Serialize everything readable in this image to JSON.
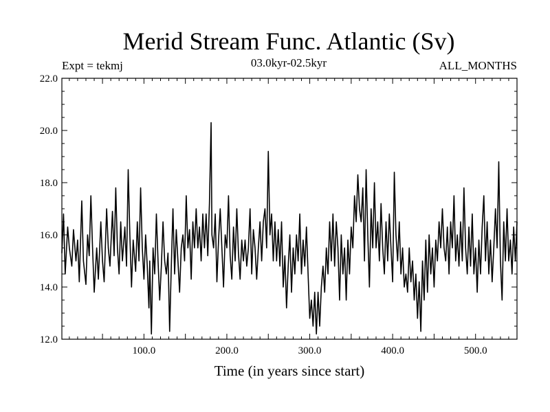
{
  "chart_data": {
    "type": "line",
    "title": "Merid Stream Func. Atlantic (Sv)",
    "subtitle": "03.0kyr-02.5kyr",
    "left_label": "Expt = tekmj",
    "right_label": "ALL_MONTHS",
    "xlabel": "Time (in years since start)",
    "ylabel": "",
    "xlim": [
      1,
      550
    ],
    "ylim": [
      12.0,
      22.0
    ],
    "x_ticks": [
      100.0,
      200.0,
      300.0,
      400.0,
      500.0
    ],
    "x_tick_labels": [
      "100.0",
      "200.0",
      "300.0",
      "400.0",
      "500.0"
    ],
    "y_ticks": [
      12.0,
      14.0,
      16.0,
      18.0,
      20.0,
      22.0
    ],
    "y_tick_labels": [
      "12.0",
      "14.0",
      "16.0",
      "18.0",
      "20.0",
      "22.0"
    ],
    "grid": false,
    "line_color": "#000000",
    "series": [
      {
        "name": "Merid Stream Func. Atlantic",
        "anchors": [
          [
            1,
            15.3
          ],
          [
            3,
            16.8
          ],
          [
            5,
            14.5
          ],
          [
            8,
            16.3
          ],
          [
            10,
            15.5
          ],
          [
            13,
            14.8
          ],
          [
            15,
            16.2
          ],
          [
            18,
            15.0
          ],
          [
            20,
            15.8
          ],
          [
            22,
            14.2
          ],
          [
            25,
            17.3
          ],
          [
            27,
            15.0
          ],
          [
            30,
            14.1
          ],
          [
            32,
            16.0
          ],
          [
            34,
            15.2
          ],
          [
            36,
            17.5
          ],
          [
            38,
            15.5
          ],
          [
            40,
            13.8
          ],
          [
            43,
            15.5
          ],
          [
            45,
            14.3
          ],
          [
            48,
            16.5
          ],
          [
            50,
            15.0
          ],
          [
            52,
            14.2
          ],
          [
            55,
            17.0
          ],
          [
            57,
            15.5
          ],
          [
            59,
            14.8
          ],
          [
            62,
            16.9
          ],
          [
            64,
            15.2
          ],
          [
            66,
            17.8
          ],
          [
            68,
            15.5
          ],
          [
            70,
            14.5
          ],
          [
            72,
            16.5
          ],
          [
            74,
            15.0
          ],
          [
            77,
            16.3
          ],
          [
            79,
            14.8
          ],
          [
            81,
            18.5
          ],
          [
            83,
            16.0
          ],
          [
            85,
            14.0
          ],
          [
            87,
            15.8
          ],
          [
            90,
            14.6
          ],
          [
            92,
            16.5
          ],
          [
            94,
            15.0
          ],
          [
            96,
            17.8
          ],
          [
            98,
            15.5
          ],
          [
            100,
            14.3
          ],
          [
            102,
            16.0
          ],
          [
            104,
            14.8
          ],
          [
            106,
            13.2
          ],
          [
            107,
            15.0
          ],
          [
            109,
            12.2
          ],
          [
            111,
            15.5
          ],
          [
            113,
            14.5
          ],
          [
            115,
            16.8
          ],
          [
            117,
            15.0
          ],
          [
            119,
            13.5
          ],
          [
            121,
            14.8
          ],
          [
            123,
            16.5
          ],
          [
            125,
            15.0
          ],
          [
            127,
            14.5
          ],
          [
            129,
            15.3
          ],
          [
            131,
            12.3
          ],
          [
            133,
            14.8
          ],
          [
            135,
            17.0
          ],
          [
            137,
            14.5
          ],
          [
            139,
            16.2
          ],
          [
            141,
            15.0
          ],
          [
            143,
            13.8
          ],
          [
            145,
            15.5
          ],
          [
            147,
            16.0
          ],
          [
            149,
            15.0
          ],
          [
            151,
            17.5
          ],
          [
            153,
            15.5
          ],
          [
            155,
            16.2
          ],
          [
            157,
            14.3
          ],
          [
            159,
            16.5
          ],
          [
            161,
            15.5
          ],
          [
            163,
            17.0
          ],
          [
            165,
            15.5
          ],
          [
            167,
            16.3
          ],
          [
            169,
            15.0
          ],
          [
            171,
            16.8
          ],
          [
            173,
            15.5
          ],
          [
            175,
            16.8
          ],
          [
            177,
            15.2
          ],
          [
            179,
            17.2
          ],
          [
            181,
            20.3
          ],
          [
            182,
            16.0
          ],
          [
            184,
            15.5
          ],
          [
            186,
            16.8
          ],
          [
            188,
            14.2
          ],
          [
            190,
            15.8
          ],
          [
            192,
            17.0
          ],
          [
            194,
            15.5
          ],
          [
            196,
            14.0
          ],
          [
            198,
            16.0
          ],
          [
            200,
            15.5
          ],
          [
            202,
            17.5
          ],
          [
            204,
            15.2
          ],
          [
            206,
            14.3
          ],
          [
            208,
            16.3
          ],
          [
            210,
            15.0
          ],
          [
            212,
            17.0
          ],
          [
            214,
            15.3
          ],
          [
            216,
            14.3
          ],
          [
            218,
            15.8
          ],
          [
            220,
            15.0
          ],
          [
            222,
            15.8
          ],
          [
            224,
            14.8
          ],
          [
            226,
            15.5
          ],
          [
            228,
            17.0
          ],
          [
            230,
            14.5
          ],
          [
            232,
            16.2
          ],
          [
            234,
            15.5
          ],
          [
            236,
            14.3
          ],
          [
            238,
            15.5
          ],
          [
            240,
            16.5
          ],
          [
            242,
            15.0
          ],
          [
            244,
            16.5
          ],
          [
            246,
            17.0
          ],
          [
            248,
            15.5
          ],
          [
            250,
            19.2
          ],
          [
            252,
            16.0
          ],
          [
            254,
            16.8
          ],
          [
            256,
            15.0
          ],
          [
            258,
            16.5
          ],
          [
            260,
            15.0
          ],
          [
            262,
            16.2
          ],
          [
            264,
            14.8
          ],
          [
            266,
            16.5
          ],
          [
            268,
            14.0
          ],
          [
            270,
            15.2
          ],
          [
            272,
            13.2
          ],
          [
            274,
            14.8
          ],
          [
            276,
            16.0
          ],
          [
            278,
            13.8
          ],
          [
            280,
            15.5
          ],
          [
            282,
            14.5
          ],
          [
            284,
            16.0
          ],
          [
            286,
            15.0
          ],
          [
            288,
            16.8
          ],
          [
            290,
            14.5
          ],
          [
            292,
            15.8
          ],
          [
            294,
            14.8
          ],
          [
            296,
            16.3
          ],
          [
            298,
            14.5
          ],
          [
            300,
            12.8
          ],
          [
            302,
            13.5
          ],
          [
            304,
            12.5
          ],
          [
            306,
            13.8
          ],
          [
            308,
            12.2
          ],
          [
            310,
            13.8
          ],
          [
            312,
            12.5
          ],
          [
            314,
            14.0
          ],
          [
            316,
            14.8
          ],
          [
            318,
            13.8
          ],
          [
            320,
            15.5
          ],
          [
            322,
            14.5
          ],
          [
            324,
            16.5
          ],
          [
            326,
            15.0
          ],
          [
            328,
            16.8
          ],
          [
            330,
            14.8
          ],
          [
            332,
            16.5
          ],
          [
            334,
            15.5
          ],
          [
            336,
            13.5
          ],
          [
            338,
            16.0
          ],
          [
            340,
            14.5
          ],
          [
            342,
            15.5
          ],
          [
            344,
            13.5
          ],
          [
            346,
            15.8
          ],
          [
            348,
            14.5
          ],
          [
            350,
            16.3
          ],
          [
            352,
            15.5
          ],
          [
            354,
            17.5
          ],
          [
            356,
            16.5
          ],
          [
            358,
            18.3
          ],
          [
            360,
            17.0
          ],
          [
            362,
            16.5
          ],
          [
            364,
            17.8
          ],
          [
            366,
            15.0
          ],
          [
            368,
            18.5
          ],
          [
            370,
            16.0
          ],
          [
            372,
            14.0
          ],
          [
            374,
            17.0
          ],
          [
            376,
            15.5
          ],
          [
            378,
            18.0
          ],
          [
            380,
            15.5
          ],
          [
            382,
            16.5
          ],
          [
            384,
            15.0
          ],
          [
            386,
            17.2
          ],
          [
            388,
            15.5
          ],
          [
            390,
            14.5
          ],
          [
            392,
            16.5
          ],
          [
            394,
            15.0
          ],
          [
            396,
            16.8
          ],
          [
            398,
            15.5
          ],
          [
            400,
            14.2
          ],
          [
            402,
            18.4
          ],
          [
            404,
            16.0
          ],
          [
            406,
            15.0
          ],
          [
            408,
            16.5
          ],
          [
            410,
            14.5
          ],
          [
            412,
            15.5
          ],
          [
            414,
            14.0
          ],
          [
            416,
            14.5
          ],
          [
            418,
            13.8
          ],
          [
            420,
            15.5
          ],
          [
            422,
            14.2
          ],
          [
            424,
            15.0
          ],
          [
            426,
            13.5
          ],
          [
            428,
            14.5
          ],
          [
            430,
            12.8
          ],
          [
            432,
            14.2
          ],
          [
            434,
            12.3
          ],
          [
            436,
            15.0
          ],
          [
            438,
            13.5
          ],
          [
            440,
            15.8
          ],
          [
            442,
            13.8
          ],
          [
            444,
            16.0
          ],
          [
            446,
            14.5
          ],
          [
            448,
            15.5
          ],
          [
            450,
            14.0
          ],
          [
            452,
            15.8
          ],
          [
            454,
            15.0
          ],
          [
            456,
            16.5
          ],
          [
            458,
            15.5
          ],
          [
            460,
            17.0
          ],
          [
            462,
            15.5
          ],
          [
            464,
            15.0
          ],
          [
            466,
            16.3
          ],
          [
            468,
            14.5
          ],
          [
            470,
            16.5
          ],
          [
            472,
            15.5
          ],
          [
            474,
            17.5
          ],
          [
            476,
            15.0
          ],
          [
            478,
            16.0
          ],
          [
            480,
            14.8
          ],
          [
            482,
            16.5
          ],
          [
            484,
            15.0
          ],
          [
            486,
            17.8
          ],
          [
            488,
            15.5
          ],
          [
            490,
            14.5
          ],
          [
            492,
            16.3
          ],
          [
            494,
            14.8
          ],
          [
            496,
            16.8
          ],
          [
            498,
            14.5
          ],
          [
            500,
            15.5
          ],
          [
            502,
            13.8
          ],
          [
            504,
            15.8
          ],
          [
            506,
            14.5
          ],
          [
            508,
            16.3
          ],
          [
            510,
            17.5
          ],
          [
            512,
            15.0
          ],
          [
            514,
            16.5
          ],
          [
            516,
            14.5
          ],
          [
            518,
            15.8
          ],
          [
            520,
            14.2
          ],
          [
            522,
            15.5
          ],
          [
            524,
            17.0
          ],
          [
            526,
            15.5
          ],
          [
            528,
            18.8
          ],
          [
            530,
            15.0
          ],
          [
            532,
            13.5
          ],
          [
            534,
            16.5
          ],
          [
            536,
            15.0
          ],
          [
            538,
            17.0
          ],
          [
            540,
            15.0
          ],
          [
            542,
            15.8
          ],
          [
            544,
            14.5
          ],
          [
            546,
            16.3
          ],
          [
            548,
            15.0
          ],
          [
            550,
            16.5
          ]
        ]
      }
    ]
  }
}
